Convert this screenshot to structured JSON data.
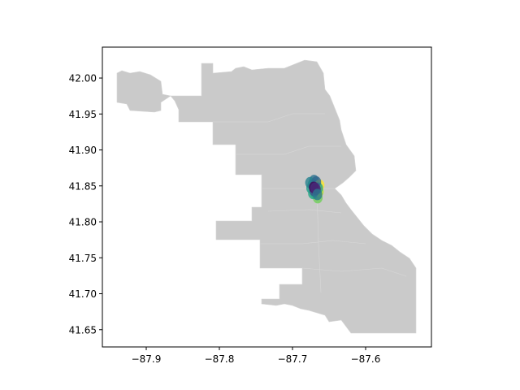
{
  "chart_data": {
    "type": "scatter",
    "title": "",
    "xlabel": "",
    "ylabel": "",
    "xlim": [
      -87.96,
      -87.51
    ],
    "ylim": [
      41.626,
      42.043
    ],
    "xticks": [
      -87.9,
      -87.8,
      -87.7,
      -87.6
    ],
    "yticks": [
      41.65,
      41.7,
      41.75,
      41.8,
      41.85,
      41.9,
      41.95,
      42.0
    ],
    "xtick_labels": [
      "−87.9",
      "−87.8",
      "−87.7",
      "−87.6"
    ],
    "ytick_labels": [
      "41.65",
      "41.70",
      "41.75",
      "41.80",
      "41.85",
      "41.90",
      "41.95",
      "42.00"
    ],
    "background_layer": {
      "description": "city boundary polygons",
      "color": "#cacaca"
    },
    "colormap": "viridis",
    "points": [
      {
        "x": -87.6725,
        "y": 41.852,
        "color": "#21918c"
      },
      {
        "x": -87.6705,
        "y": 41.8575,
        "color": "#2c728e"
      },
      {
        "x": -87.6745,
        "y": 41.847,
        "color": "#1f9e89"
      },
      {
        "x": -87.669,
        "y": 41.84,
        "color": "#35b779"
      },
      {
        "x": -87.6655,
        "y": 41.8335,
        "color": "#6ece58"
      },
      {
        "x": -87.664,
        "y": 41.842,
        "color": "#b5de2b"
      },
      {
        "x": -87.663,
        "y": 41.851,
        "color": "#fde725"
      },
      {
        "x": -87.676,
        "y": 41.8545,
        "color": "#26828e"
      },
      {
        "x": -87.665,
        "y": 41.847,
        "color": "#1f9e89"
      },
      {
        "x": -87.672,
        "y": 41.8395,
        "color": "#22a884"
      },
      {
        "x": -87.6675,
        "y": 41.8555,
        "color": "#31688e"
      },
      {
        "x": -87.67,
        "y": 41.843,
        "color": "#3e4a89"
      },
      {
        "x": -87.668,
        "y": 41.845,
        "color": "#482878"
      },
      {
        "x": -87.671,
        "y": 41.848,
        "color": "#440154"
      },
      {
        "x": -87.669,
        "y": 41.847,
        "color": "#472d7b"
      },
      {
        "x": -87.666,
        "y": 41.838,
        "color": "#2a788e"
      }
    ]
  }
}
